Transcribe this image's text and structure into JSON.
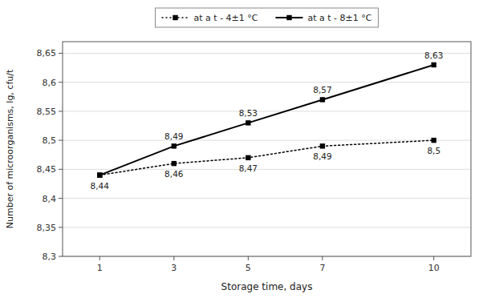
{
  "chart_data": {
    "type": "line",
    "x": [
      1,
      3,
      5,
      7,
      10
    ],
    "xlim": [
      0,
      11
    ],
    "xticks": [
      1,
      3,
      5,
      7,
      10
    ],
    "ylim": [
      8.3,
      8.67
    ],
    "yticks": [
      {
        "value": 8.3,
        "label": "8,3"
      },
      {
        "value": 8.35,
        "label": "8,35"
      },
      {
        "value": 8.4,
        "label": "8,4"
      },
      {
        "value": 8.45,
        "label": "8,45"
      },
      {
        "value": 8.5,
        "label": "8,5"
      },
      {
        "value": 8.55,
        "label": "8,55"
      },
      {
        "value": 8.6,
        "label": "8,6"
      },
      {
        "value": 8.65,
        "label": "8,65"
      }
    ],
    "x_label": "Storage time, days",
    "y_label": "Number of microorganisms, lg, cfu/t",
    "grid": true,
    "legend": "top",
    "data_labels": true,
    "series": [
      {
        "name": "at a t - 4±1 °C",
        "color": "#000000",
        "marker": "square",
        "line_style": "dotted",
        "values": [
          8.44,
          8.46,
          8.47,
          8.49,
          8.5
        ],
        "value_labels": [
          "8,44",
          "8,46",
          "8,47",
          "8,49",
          "8,5"
        ],
        "label_position": "below"
      },
      {
        "name": "at a t - 8±1 °C",
        "color": "#000000",
        "marker": "square",
        "line_style": "solid",
        "values": [
          8.44,
          8.49,
          8.53,
          8.57,
          8.63
        ],
        "value_labels": [
          null,
          "8,49",
          "8,53",
          "8,57",
          "8,63"
        ],
        "label_position": "above"
      }
    ]
  }
}
